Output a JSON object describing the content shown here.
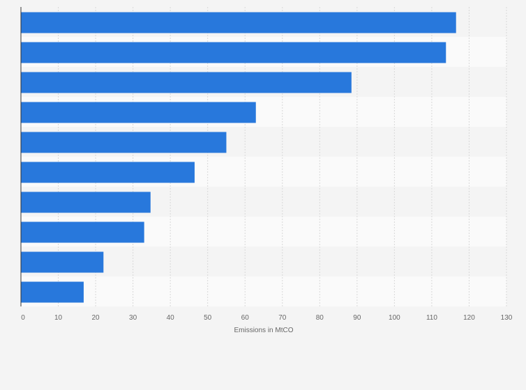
{
  "chart_data": {
    "type": "bar",
    "orientation": "horizontal",
    "categories": [
      "",
      "",
      "",
      "",
      "",
      "",
      "",
      "",
      "",
      ""
    ],
    "values": [
      116.5,
      113.8,
      88.5,
      62.9,
      55.0,
      46.5,
      34.7,
      33.0,
      22.1,
      16.8
    ],
    "title": "",
    "xlabel": "Emissions in MtCO",
    "ylabel": "",
    "xlim": [
      0,
      130
    ],
    "xticks": [
      "0",
      "10",
      "20",
      "30",
      "40",
      "50",
      "60",
      "70",
      "80",
      "90",
      "100",
      "110",
      "120",
      "130"
    ],
    "grid": true,
    "bar_color": "#2878dc",
    "band_colors": [
      "#f4f4f4",
      "#fafafa"
    ],
    "gridline_color": "#d8d8d8"
  }
}
